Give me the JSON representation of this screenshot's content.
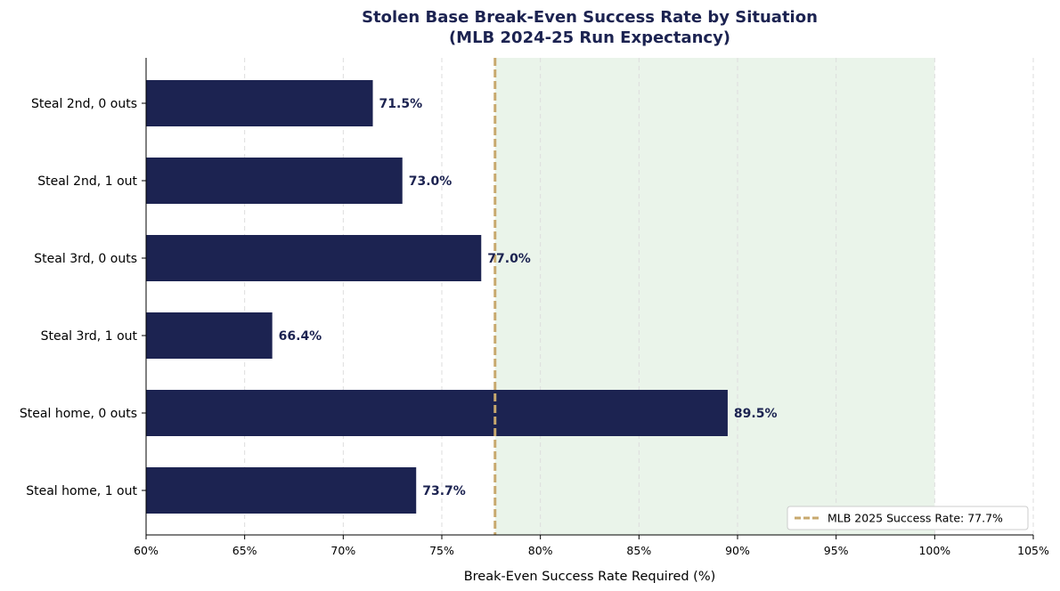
{
  "chart_data": {
    "type": "bar",
    "orientation": "horizontal",
    "title": "Stolen Base Break-Even Success Rate by Situation",
    "subtitle": "(MLB 2024-25 Run Expectancy)",
    "xlabel": "Break-Even Success Rate Required (%)",
    "ylabel": "",
    "categories": [
      "Steal 2nd, 0 outs",
      "Steal 2nd, 1 out",
      "Steal 3rd, 0 outs",
      "Steal 3rd, 1 out",
      "Steal home, 0 outs",
      "Steal home, 1 out"
    ],
    "values": [
      71.5,
      73.0,
      77.0,
      66.4,
      89.5,
      73.7
    ],
    "value_labels": [
      "71.5%",
      "73.0%",
      "77.0%",
      "66.4%",
      "89.5%",
      "73.7%"
    ],
    "xlim": [
      60,
      105
    ],
    "xticks": [
      60,
      65,
      70,
      75,
      80,
      85,
      90,
      95,
      100,
      105
    ],
    "xtick_labels": [
      "60%",
      "65%",
      "70%",
      "75%",
      "80%",
      "85%",
      "90%",
      "95%",
      "100%",
      "105%"
    ],
    "grid": "x-dashed",
    "reference_line": {
      "value": 77.7,
      "label": "MLB 2025 Success Rate: 77.7%",
      "style": "dashed"
    },
    "shaded_region": {
      "from": 77.7,
      "to": 100
    },
    "legend_position": "lower-right",
    "colors": {
      "bar": "#1c2351",
      "reference_line": "#c8a96e",
      "shaded_region": "#eaf4ea",
      "grid": "#dddddd"
    }
  }
}
